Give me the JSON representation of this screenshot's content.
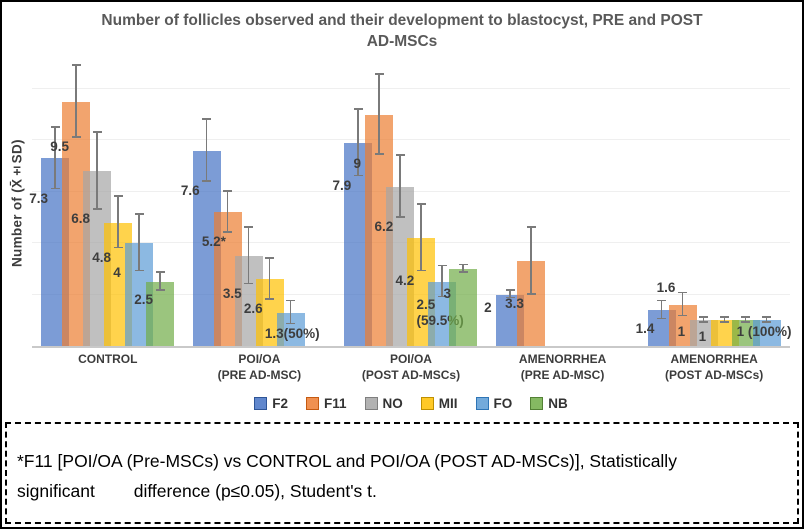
{
  "figure": {
    "title_line1": "Number of follicles observed and their development to blastocyst, PRE and POST",
    "title_line2": "AD-MSCs",
    "footnote_line1": "*F11 [POI/OA (Pre-MSCs) vs CONTROL and POI/OA (POST AD-MSCs)], Statistically",
    "footnote_line2": "significant        difference (p≤0.05), Student's t."
  },
  "chart_data": {
    "type": "bar",
    "title": "Number of follicles observed and their development to blastocyst, PRE and POST AD-MSCs",
    "xlabel": "",
    "ylabel": "Number of (X̄±SD)",
    "ylim": [
      0,
      11.3
    ],
    "grid": true,
    "gridline_step": 2,
    "legend_position": "bottom",
    "bar_opacity": 0.7,
    "error_bars": "±SD shown as whiskers",
    "series": [
      {
        "name": "F2",
        "color": "#4472C4",
        "border": "#2E5597"
      },
      {
        "name": "F11",
        "color": "#ED7D31",
        "border": "#C55A11"
      },
      {
        "name": "NO",
        "color": "#A5A5A5",
        "border": "#7F7F7F"
      },
      {
        "name": "MII",
        "color": "#FFC000",
        "border": "#BF9000"
      },
      {
        "name": "FO",
        "color": "#5B9BD5",
        "border": "#2E75B6"
      },
      {
        "name": "NB",
        "color": "#70AD47",
        "border": "#538135"
      }
    ],
    "groups": [
      {
        "label": "CONTROL",
        "bars": [
          {
            "series": "F2",
            "value": 7.3,
            "sd": 1.2,
            "label": "7.3"
          },
          {
            "series": "F11",
            "value": 9.5,
            "sd": 1.4,
            "label": "9.5"
          },
          {
            "series": "NO",
            "value": 6.8,
            "sd": 1.5,
            "label": "6.8"
          },
          {
            "series": "MII",
            "value": 4.8,
            "sd": 1.0,
            "label": "4.8"
          },
          {
            "series": "FO",
            "value": 4,
            "sd": 1.1,
            "label": "4",
            "ldy": -8
          },
          {
            "series": "NB",
            "value": 2.5,
            "sd": 0.35,
            "label": "2.5"
          }
        ]
      },
      {
        "label": "POI/OA\n(PRE AD-MSC)",
        "bars": [
          {
            "series": "F2",
            "value": 7.6,
            "sd": 1.2,
            "label": "7.6"
          },
          {
            "series": "F11",
            "value": 5.2,
            "sd": 0.8,
            "label": "5.2*"
          },
          {
            "series": "NO",
            "value": 3.5,
            "sd": 1.1,
            "label": "3.5"
          },
          {
            "series": "MII",
            "value": 2.6,
            "sd": 0.8,
            "label": "2.6"
          },
          {
            "series": "FO",
            "value": 1.3,
            "sd": 0.45,
            "label": "1.3(50%)"
          },
          {
            "series": "NB",
            "value": 0,
            "sd": 0,
            "label": ""
          }
        ]
      },
      {
        "label": "POI/OA\n(POST AD-MSCs)",
        "bars": [
          {
            "series": "F2",
            "value": 7.9,
            "sd": 1.3,
            "label": "7.9"
          },
          {
            "series": "F11",
            "value": 9,
            "sd": 1.55,
            "label": "9"
          },
          {
            "series": "NO",
            "value": 6.2,
            "sd": 1.2,
            "label": "6.2"
          },
          {
            "series": "MII",
            "value": 4.2,
            "sd": 1.3,
            "label": "4.2"
          },
          {
            "series": "FO",
            "value": 2.5,
            "sd": 0.6,
            "label": "2.5\n(59.5%)",
            "ldy": 14
          },
          {
            "series": "NB",
            "value": 3,
            "sd": 0.15,
            "label": "3",
            "ldy": 12,
            "ldx": 6
          }
        ]
      },
      {
        "label": "AMENORRHEA\n(PRE AD-MSC)",
        "bars": [
          {
            "series": "F2",
            "value": 2,
            "sd": 0.15,
            "label": "2"
          },
          {
            "series": "F11",
            "value": 3.3,
            "sd": 1.3,
            "label": "3.3"
          },
          {
            "series": "NO",
            "value": 0,
            "sd": 0,
            "label": ""
          },
          {
            "series": "MII",
            "value": 0,
            "sd": 0,
            "label": ""
          },
          {
            "series": "FO",
            "value": 0,
            "sd": 0,
            "label": ""
          },
          {
            "series": "NB",
            "value": 0,
            "sd": 0,
            "label": ""
          }
        ]
      },
      {
        "label": "AMENORRHEA\n(POST AD-MSCs)",
        "bars": [
          {
            "series": "F2",
            "value": 1.4,
            "sd": 0.35,
            "label": "1.4"
          },
          {
            "series": "F11",
            "value": 1.6,
            "sd": 0.45,
            "label": "1.6",
            "ldy": -38
          },
          {
            "series": "NO",
            "value": 1,
            "sd": 0.1,
            "label": "1"
          },
          {
            "series": "MII",
            "value": 1,
            "sd": 0.1,
            "label": "1",
            "ldy": 5
          },
          {
            "series": "NB",
            "value": 1,
            "sd": 0.1,
            "label": ""
          },
          {
            "series": "FO",
            "value": 1,
            "sd": 0.1,
            "label": "1 (100%)",
            "ldx": -4
          }
        ]
      }
    ]
  }
}
